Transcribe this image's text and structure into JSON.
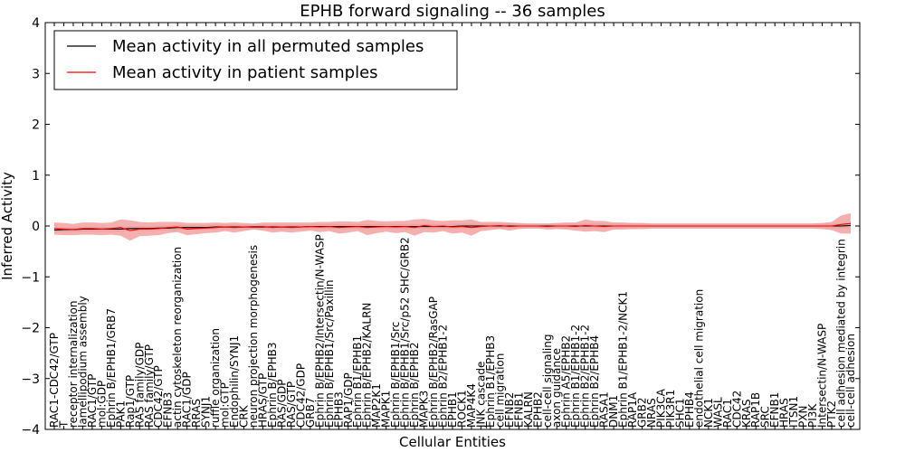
{
  "chart_data": {
    "type": "line",
    "title": "EPHB forward signaling -- 36 samples",
    "xlabel": "Cellular Entities",
    "ylabel": "Inferred Activity",
    "ylim": [
      -4,
      4
    ],
    "yticks": [
      -4,
      -3,
      -2,
      -1,
      0,
      1,
      2,
      3,
      4
    ],
    "ytick_labels": [
      "−4",
      "−3",
      "−2",
      "−1",
      "0",
      "1",
      "2",
      "3",
      "4"
    ],
    "legend_position": "top-left",
    "categories": [
      "RAC1-CDC42/GTP",
      "T",
      "receptor internalization",
      "lamellipodium assembly",
      "RAC1/GTP",
      "mol:GDP",
      "Ephrin B/EPHB1/GRB7",
      "PAK1",
      "Rap1/GTP",
      "RAS family/GDP",
      "RAS family/GTP",
      "CDC42/GTP",
      "EFNB3",
      "actin cytoskeleton reorganization",
      "RAC1/GDP",
      "RRAS",
      "SYNJ1",
      "ruffle organization",
      "mol:GTP",
      "Endophilin/SYNJ1",
      "CRK",
      "neuron projection morphogenesis",
      "HRAS/GTP",
      "Ephrin B/EPHB3",
      "RAS/GDP",
      "RAS/GTP",
      "CDC42/GDP",
      "GRB7",
      "Ephrin B/EPHB2/Intersectin/N-WASP",
      "Ephrin B/EPHB1/Src/Paxillin",
      "EPHB3",
      "RAP1/GDP",
      "Ephrin B1/EPHB1",
      "Ephrin B/EPHB2/KALRN",
      "MAP2K1",
      "MAPK1",
      "Ephrin B/EPHB1/Src",
      "Ephrin B/EPHB1/Src/p52 SHC/GRB2",
      "Ephrin B/EPHB2",
      "MAPK3",
      "Ephrin B/EPHB2/RasGAP",
      "Ephrin B2/EPHB1-2",
      "EPHB1",
      "ROCK1",
      "MAP4K4",
      "JNK cascade",
      "Ephrin B1/EPHB3",
      "cell migration",
      "EFNB2",
      "EFNB1",
      "KALRN",
      "EPHB2",
      "cell-cell signaling",
      "axon guidance",
      "Ephrin A5/EPHB2",
      "Ephrin B1/EPHB1-2",
      "Ephrin B2/EPHB1-2",
      "Ephrin B2/EPHB4",
      "RASA1",
      "DNM1",
      "Ephrin B1/EPHB1-2/NCK1",
      "RAP1A",
      "GRB2",
      "NRAS",
      "PIK3CA",
      "PIK3R1",
      "SHC1",
      "EPHB4",
      "endothelial cell migration",
      "NCK1",
      "WASL",
      "RAC1",
      "CDC42",
      "KRAS",
      "RAP1B",
      "SRC",
      "EFNB1",
      "HRAS",
      "ITSN1",
      "PXN",
      "PI3K",
      "Intersectin/N-WASP",
      "PTK2",
      "cell adhesion mediated by integrin",
      "cell-cell adhesion"
    ],
    "series": [
      {
        "name": "Mean activity in all permuted samples",
        "color": "#000000",
        "values": [
          -0.08,
          -0.07,
          -0.07,
          -0.06,
          -0.06,
          -0.06,
          -0.06,
          -0.06,
          -0.05,
          -0.05,
          -0.05,
          -0.04,
          -0.04,
          -0.03,
          -0.03,
          -0.03,
          -0.03,
          -0.02,
          -0.02,
          -0.02,
          -0.02,
          -0.02,
          -0.02,
          -0.02,
          -0.02,
          -0.02,
          -0.02,
          -0.01,
          -0.01,
          -0.01,
          -0.01,
          -0.01,
          -0.01,
          -0.01,
          -0.01,
          -0.01,
          -0.01,
          -0.01,
          -0.01,
          -0.01,
          -0.01,
          -0.01,
          -0.01,
          0.0,
          0.0,
          0.0,
          0.0,
          0.0,
          0.0,
          0.0,
          0.0,
          0.0,
          0.0,
          0.0,
          0.0,
          0.0,
          0.0,
          0.0,
          0.0,
          0.0,
          0.0,
          0.0,
          0.0,
          0.0,
          0.0,
          0.0,
          0.0,
          0.0,
          0.0,
          0.0,
          0.0,
          0.0,
          0.0,
          0.0,
          0.0,
          0.0,
          0.0,
          0.0,
          0.0,
          0.0,
          0.0,
          0.0,
          0.0,
          0.0,
          0.01
        ],
        "band": 0.05,
        "band_color": "#c8c8c8"
      },
      {
        "name": "Mean activity in patient samples",
        "color": "#ff0000",
        "values": [
          -0.05,
          -0.06,
          -0.07,
          -0.05,
          -0.05,
          -0.06,
          -0.05,
          -0.03,
          -0.09,
          -0.06,
          -0.06,
          -0.05,
          -0.03,
          -0.02,
          -0.06,
          -0.05,
          -0.04,
          -0.03,
          -0.02,
          -0.03,
          -0.02,
          -0.01,
          -0.01,
          -0.03,
          -0.02,
          -0.03,
          -0.02,
          -0.01,
          -0.02,
          -0.01,
          -0.03,
          -0.02,
          -0.01,
          -0.03,
          -0.02,
          -0.01,
          -0.02,
          -0.01,
          -0.03,
          0.01,
          -0.01,
          0.0,
          -0.02,
          -0.01,
          -0.03,
          -0.01,
          0.0,
          0.01,
          -0.01,
          0.0,
          0.0,
          0.0,
          -0.01,
          0.0,
          0.0,
          -0.01,
          0.01,
          0.0,
          -0.01,
          0.0,
          0.0,
          0.0,
          0.0,
          0.0,
          0.0,
          0.0,
          0.0,
          0.0,
          0.0,
          0.0,
          0.0,
          0.0,
          0.0,
          0.0,
          0.0,
          0.0,
          0.0,
          0.0,
          0.0,
          0.0,
          0.0,
          0.0,
          0.0,
          0.03,
          0.05
        ],
        "band": [
          0.12,
          0.12,
          0.11,
          0.12,
          0.12,
          0.12,
          0.12,
          0.16,
          0.2,
          0.14,
          0.13,
          0.13,
          0.11,
          0.1,
          0.12,
          0.11,
          0.1,
          0.1,
          0.08,
          0.1,
          0.08,
          0.06,
          0.08,
          0.1,
          0.09,
          0.1,
          0.09,
          0.08,
          0.1,
          0.09,
          0.12,
          0.11,
          0.09,
          0.15,
          0.12,
          0.1,
          0.12,
          0.11,
          0.16,
          0.13,
          0.12,
          0.1,
          0.13,
          0.12,
          0.16,
          0.09,
          0.08,
          0.07,
          0.08,
          0.06,
          0.05,
          0.05,
          0.06,
          0.06,
          0.07,
          0.08,
          0.12,
          0.1,
          0.11,
          0.07,
          0.07,
          0.06,
          0.06,
          0.05,
          0.05,
          0.05,
          0.05,
          0.05,
          0.05,
          0.05,
          0.05,
          0.05,
          0.05,
          0.05,
          0.05,
          0.05,
          0.05,
          0.05,
          0.05,
          0.05,
          0.05,
          0.06,
          0.08,
          0.18,
          0.2
        ],
        "band_color": "#f28d8d"
      }
    ]
  }
}
